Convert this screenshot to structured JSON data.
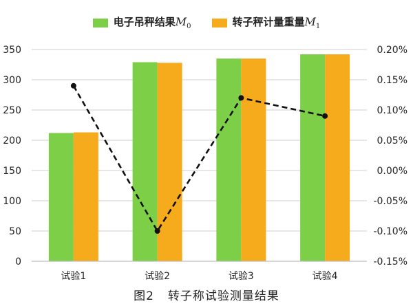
{
  "chart_data": {
    "type": "bar",
    "title": "",
    "categories": [
      "试验1",
      "试验2",
      "试验3",
      "试验4"
    ],
    "series": [
      {
        "name": "电子吊秤结果",
        "name_symbol": "M",
        "name_subscript": "0",
        "kind": "bar",
        "axis": "left",
        "color": "#7ccf46",
        "values": [
          212,
          329,
          335,
          342
        ]
      },
      {
        "name": "转子秤计量重量",
        "name_symbol": "M",
        "name_subscript": "1",
        "kind": "bar",
        "axis": "left",
        "color": "#f5ab1c",
        "values": [
          213,
          328,
          335,
          342
        ]
      },
      {
        "name": "",
        "kind": "line",
        "axis": "right",
        "style": "dashed",
        "color": "#111111",
        "values": [
          0.14,
          -0.1,
          0.12,
          0.09
        ]
      }
    ],
    "y_left": {
      "min": 0,
      "max": 350,
      "ticks": [
        0,
        50,
        100,
        150,
        200,
        250,
        300,
        350
      ]
    },
    "y_right": {
      "min": -0.15,
      "max": 0.2,
      "unit": "%",
      "decimals": 2,
      "ticks": [
        -0.15,
        -0.1,
        -0.05,
        0.0,
        0.05,
        0.1,
        0.15,
        0.2
      ]
    },
    "grid": true,
    "legend_position": "top"
  },
  "figure": {
    "label": "图2",
    "title": "转子称试验测量结果"
  }
}
